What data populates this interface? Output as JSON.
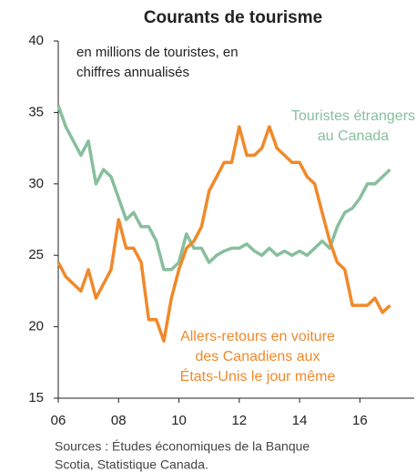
{
  "chart_data": {
    "type": "line",
    "title": "Courants de tourisme",
    "subtitle": [
      "en millions de touristes, en",
      "chiffres annualisés"
    ],
    "source": [
      "Sources : Études économiques de la Banque",
      "Scotia, Statistique Canada."
    ],
    "x": [
      2006,
      2006.25,
      2006.5,
      2006.75,
      2007,
      2007.25,
      2007.5,
      2007.75,
      2008,
      2008.25,
      2008.5,
      2008.75,
      2009,
      2009.25,
      2009.5,
      2009.75,
      2010,
      2010.25,
      2010.5,
      2010.75,
      2011,
      2011.25,
      2011.5,
      2011.75,
      2012,
      2012.25,
      2012.5,
      2012.75,
      2013,
      2013.25,
      2013.5,
      2013.75,
      2014,
      2014.25,
      2014.5,
      2014.75,
      2015,
      2015.25,
      2015.5,
      2015.75,
      2016,
      2016.25,
      2016.5,
      2016.75,
      2017
    ],
    "series": [
      {
        "name": [
          "Touristes étrangers",
          "au Canada"
        ],
        "color": "#87bf9d",
        "values": [
          35.5,
          34,
          33,
          32,
          33,
          30,
          31,
          30.5,
          29,
          27.5,
          28,
          27,
          27,
          26,
          24,
          24,
          24.5,
          26.5,
          25.5,
          25.5,
          24.5,
          25,
          25.3,
          25.5,
          25.5,
          25.8,
          25.3,
          25,
          25.5,
          25,
          25.3,
          25,
          25.3,
          25,
          25.5,
          26,
          25.5,
          27,
          28,
          28.3,
          29,
          30,
          30,
          30.5,
          31
        ]
      },
      {
        "name": [
          "Allers-retours en voiture",
          "des Canadiens aux",
          "États-Unis le jour même"
        ],
        "color": "#f0892a",
        "values": [
          24.5,
          23.5,
          23,
          22.5,
          24,
          22,
          23,
          24,
          27.5,
          25.5,
          25.5,
          24.5,
          20.5,
          20.5,
          19,
          22,
          24,
          25.5,
          26,
          27,
          29.5,
          30.5,
          31.5,
          31.5,
          34,
          32,
          32,
          32.5,
          34,
          32.5,
          32,
          31.5,
          31.5,
          30.5,
          30,
          28,
          26,
          24.5,
          24,
          21.5,
          21.5,
          21.5,
          22,
          21,
          21.5
        ]
      }
    ],
    "xlim": [
      2006,
      2017.8
    ],
    "xticks": [
      {
        "value": 2006,
        "label": "06"
      },
      {
        "value": 2008,
        "label": "08"
      },
      {
        "value": 2010,
        "label": "10"
      },
      {
        "value": 2012,
        "label": "12"
      },
      {
        "value": 2014,
        "label": "14"
      },
      {
        "value": 2016,
        "label": "16"
      }
    ],
    "ylim": [
      15,
      40
    ],
    "yticks": [
      15,
      20,
      25,
      30,
      35,
      40
    ],
    "grid": false
  }
}
